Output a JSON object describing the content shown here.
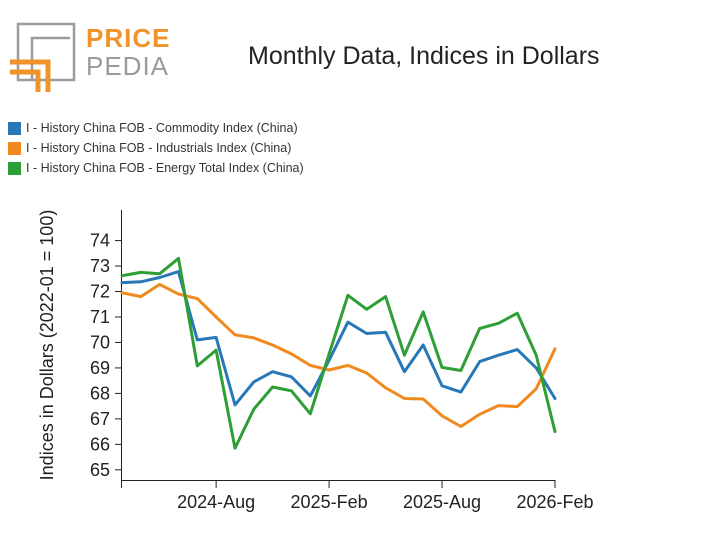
{
  "brand": {
    "line1": "PRICE",
    "line2": "PEDIA",
    "orange": "#f0932b",
    "gray": "#9b9b9b"
  },
  "chart_data": {
    "type": "line",
    "title": "Monthly Data, Indices in Dollars",
    "ylabel": "Indices in Dollars (2022-01 = 100)",
    "xlabel": "",
    "ylim": [
      64.6,
      75.2
    ],
    "yticks": [
      65,
      66,
      67,
      68,
      69,
      70,
      71,
      72,
      73,
      74
    ],
    "x": [
      "2024-03",
      "2024-04",
      "2024-05",
      "2024-06",
      "2024-07",
      "2024-08",
      "2024-09",
      "2024-10",
      "2024-11",
      "2024-12",
      "2025-01",
      "2025-02",
      "2025-03",
      "2025-04",
      "2025-05",
      "2025-06",
      "2025-07",
      "2025-08",
      "2025-09",
      "2025-10",
      "2025-11",
      "2025-12",
      "2026-01",
      "2026-02"
    ],
    "xticks": [
      "2024-Aug",
      "2025-Feb",
      "2025-Aug",
      "2026-Feb"
    ],
    "xtick_index": [
      5,
      11,
      17,
      23
    ],
    "legend_position": "top-left",
    "grid": false,
    "series": [
      {
        "name": "I - History China FOB - Commodity Index (China)",
        "color": "#2878b8",
        "values": [
          72.35,
          72.38,
          72.55,
          72.78,
          70.1,
          70.2,
          67.55,
          68.45,
          68.85,
          68.65,
          67.9,
          69.3,
          70.8,
          70.35,
          70.4,
          68.85,
          69.9,
          68.3,
          68.05,
          69.25,
          69.5,
          69.72,
          69.0,
          67.8
        ]
      },
      {
        "name": "I - History China FOB - Industrials Index (China)",
        "color": "#f08a1e",
        "values": [
          71.95,
          71.8,
          72.28,
          71.9,
          71.72,
          71.0,
          70.3,
          70.18,
          69.9,
          69.55,
          69.1,
          68.92,
          69.1,
          68.8,
          68.22,
          67.8,
          67.78,
          67.12,
          66.7,
          67.18,
          67.52,
          67.48,
          68.18,
          69.75
        ]
      },
      {
        "name": "I - History China FOB - Energy Total Index (China)",
        "color": "#2e9e36",
        "values": [
          72.62,
          72.75,
          72.7,
          73.3,
          69.08,
          69.7,
          65.85,
          67.38,
          68.25,
          68.1,
          67.2,
          69.55,
          71.85,
          71.3,
          71.8,
          69.5,
          71.2,
          69.02,
          68.9,
          70.55,
          70.75,
          71.15,
          69.5,
          66.5
        ]
      }
    ]
  }
}
